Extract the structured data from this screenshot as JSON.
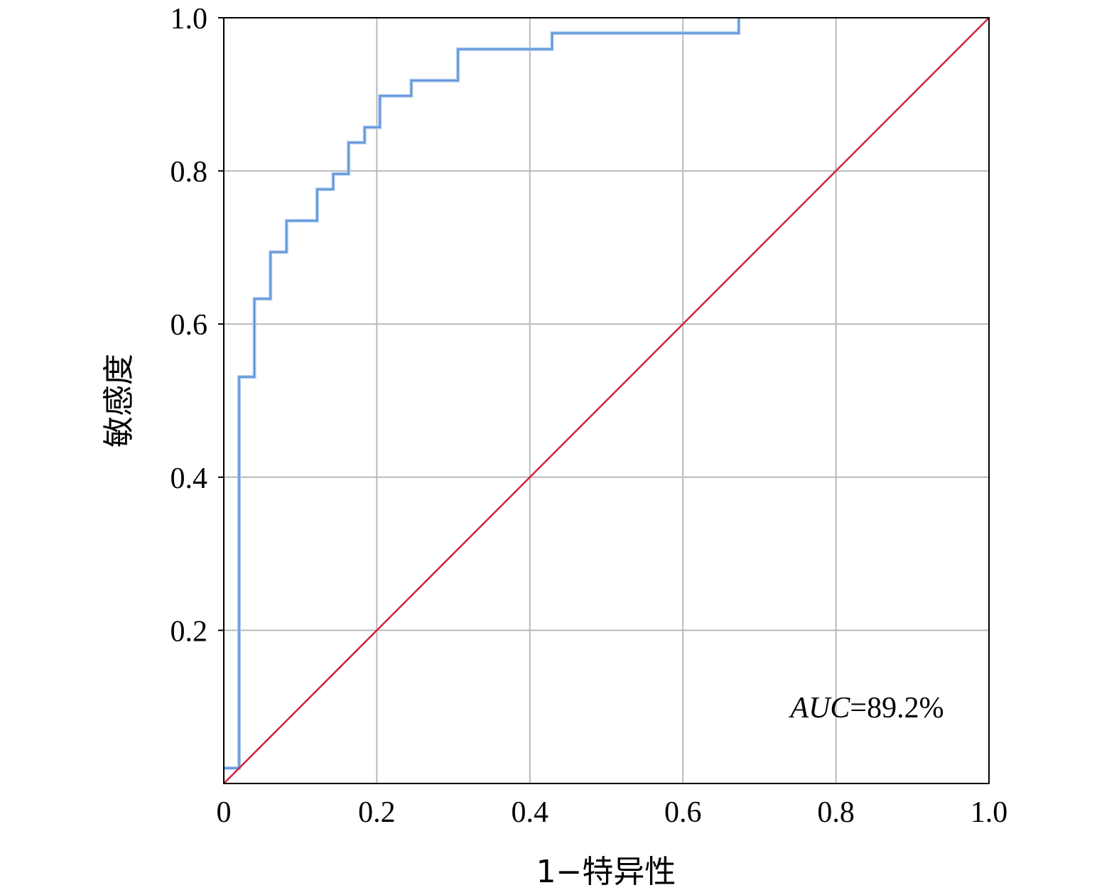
{
  "chart_data": {
    "type": "line",
    "xlabel": "1−特异性",
    "ylabel": "敏感度",
    "xlim": [
      0,
      1
    ],
    "ylim": [
      0,
      1
    ],
    "x_ticks": [
      {
        "value": 0,
        "label": "0"
      },
      {
        "value": 0.2,
        "label": "0.2"
      },
      {
        "value": 0.4,
        "label": "0.4"
      },
      {
        "value": 0.6,
        "label": "0.6"
      },
      {
        "value": 0.8,
        "label": "0.8"
      },
      {
        "value": 1.0,
        "label": "1.0"
      }
    ],
    "y_ticks": [
      {
        "value": 0.2,
        "label": "0.2"
      },
      {
        "value": 0.4,
        "label": "0.4"
      },
      {
        "value": 0.6,
        "label": "0.6"
      },
      {
        "value": 0.8,
        "label": "0.8"
      },
      {
        "value": 1.0,
        "label": "1.0"
      }
    ],
    "grid": true,
    "series": [
      {
        "kind": "roc-step",
        "color": "#5b8fd6",
        "x": [
          0,
          0.02,
          0.02,
          0.04,
          0.04,
          0.061,
          0.061,
          0.082,
          0.082,
          0.122,
          0.122,
          0.143,
          0.143,
          0.163,
          0.163,
          0.184,
          0.184,
          0.204,
          0.204,
          0.245,
          0.245,
          0.306,
          0.306,
          0.429,
          0.429,
          0.673,
          0.673
        ],
        "y": [
          0.02,
          0.02,
          0.531,
          0.531,
          0.633,
          0.633,
          0.694,
          0.694,
          0.735,
          0.735,
          0.776,
          0.776,
          0.796,
          0.796,
          0.837,
          0.837,
          0.857,
          0.857,
          0.898,
          0.898,
          0.918,
          0.918,
          0.959,
          0.959,
          0.98,
          0.98,
          1.0
        ]
      },
      {
        "kind": "reference-diagonal",
        "color": "#d0223f",
        "x": [
          0,
          1
        ],
        "y": [
          0,
          1
        ]
      }
    ],
    "annotations": [
      {
        "italic": "AUC",
        "text": "=89.2%",
        "x": 0.93,
        "y": 0.1
      }
    ]
  }
}
